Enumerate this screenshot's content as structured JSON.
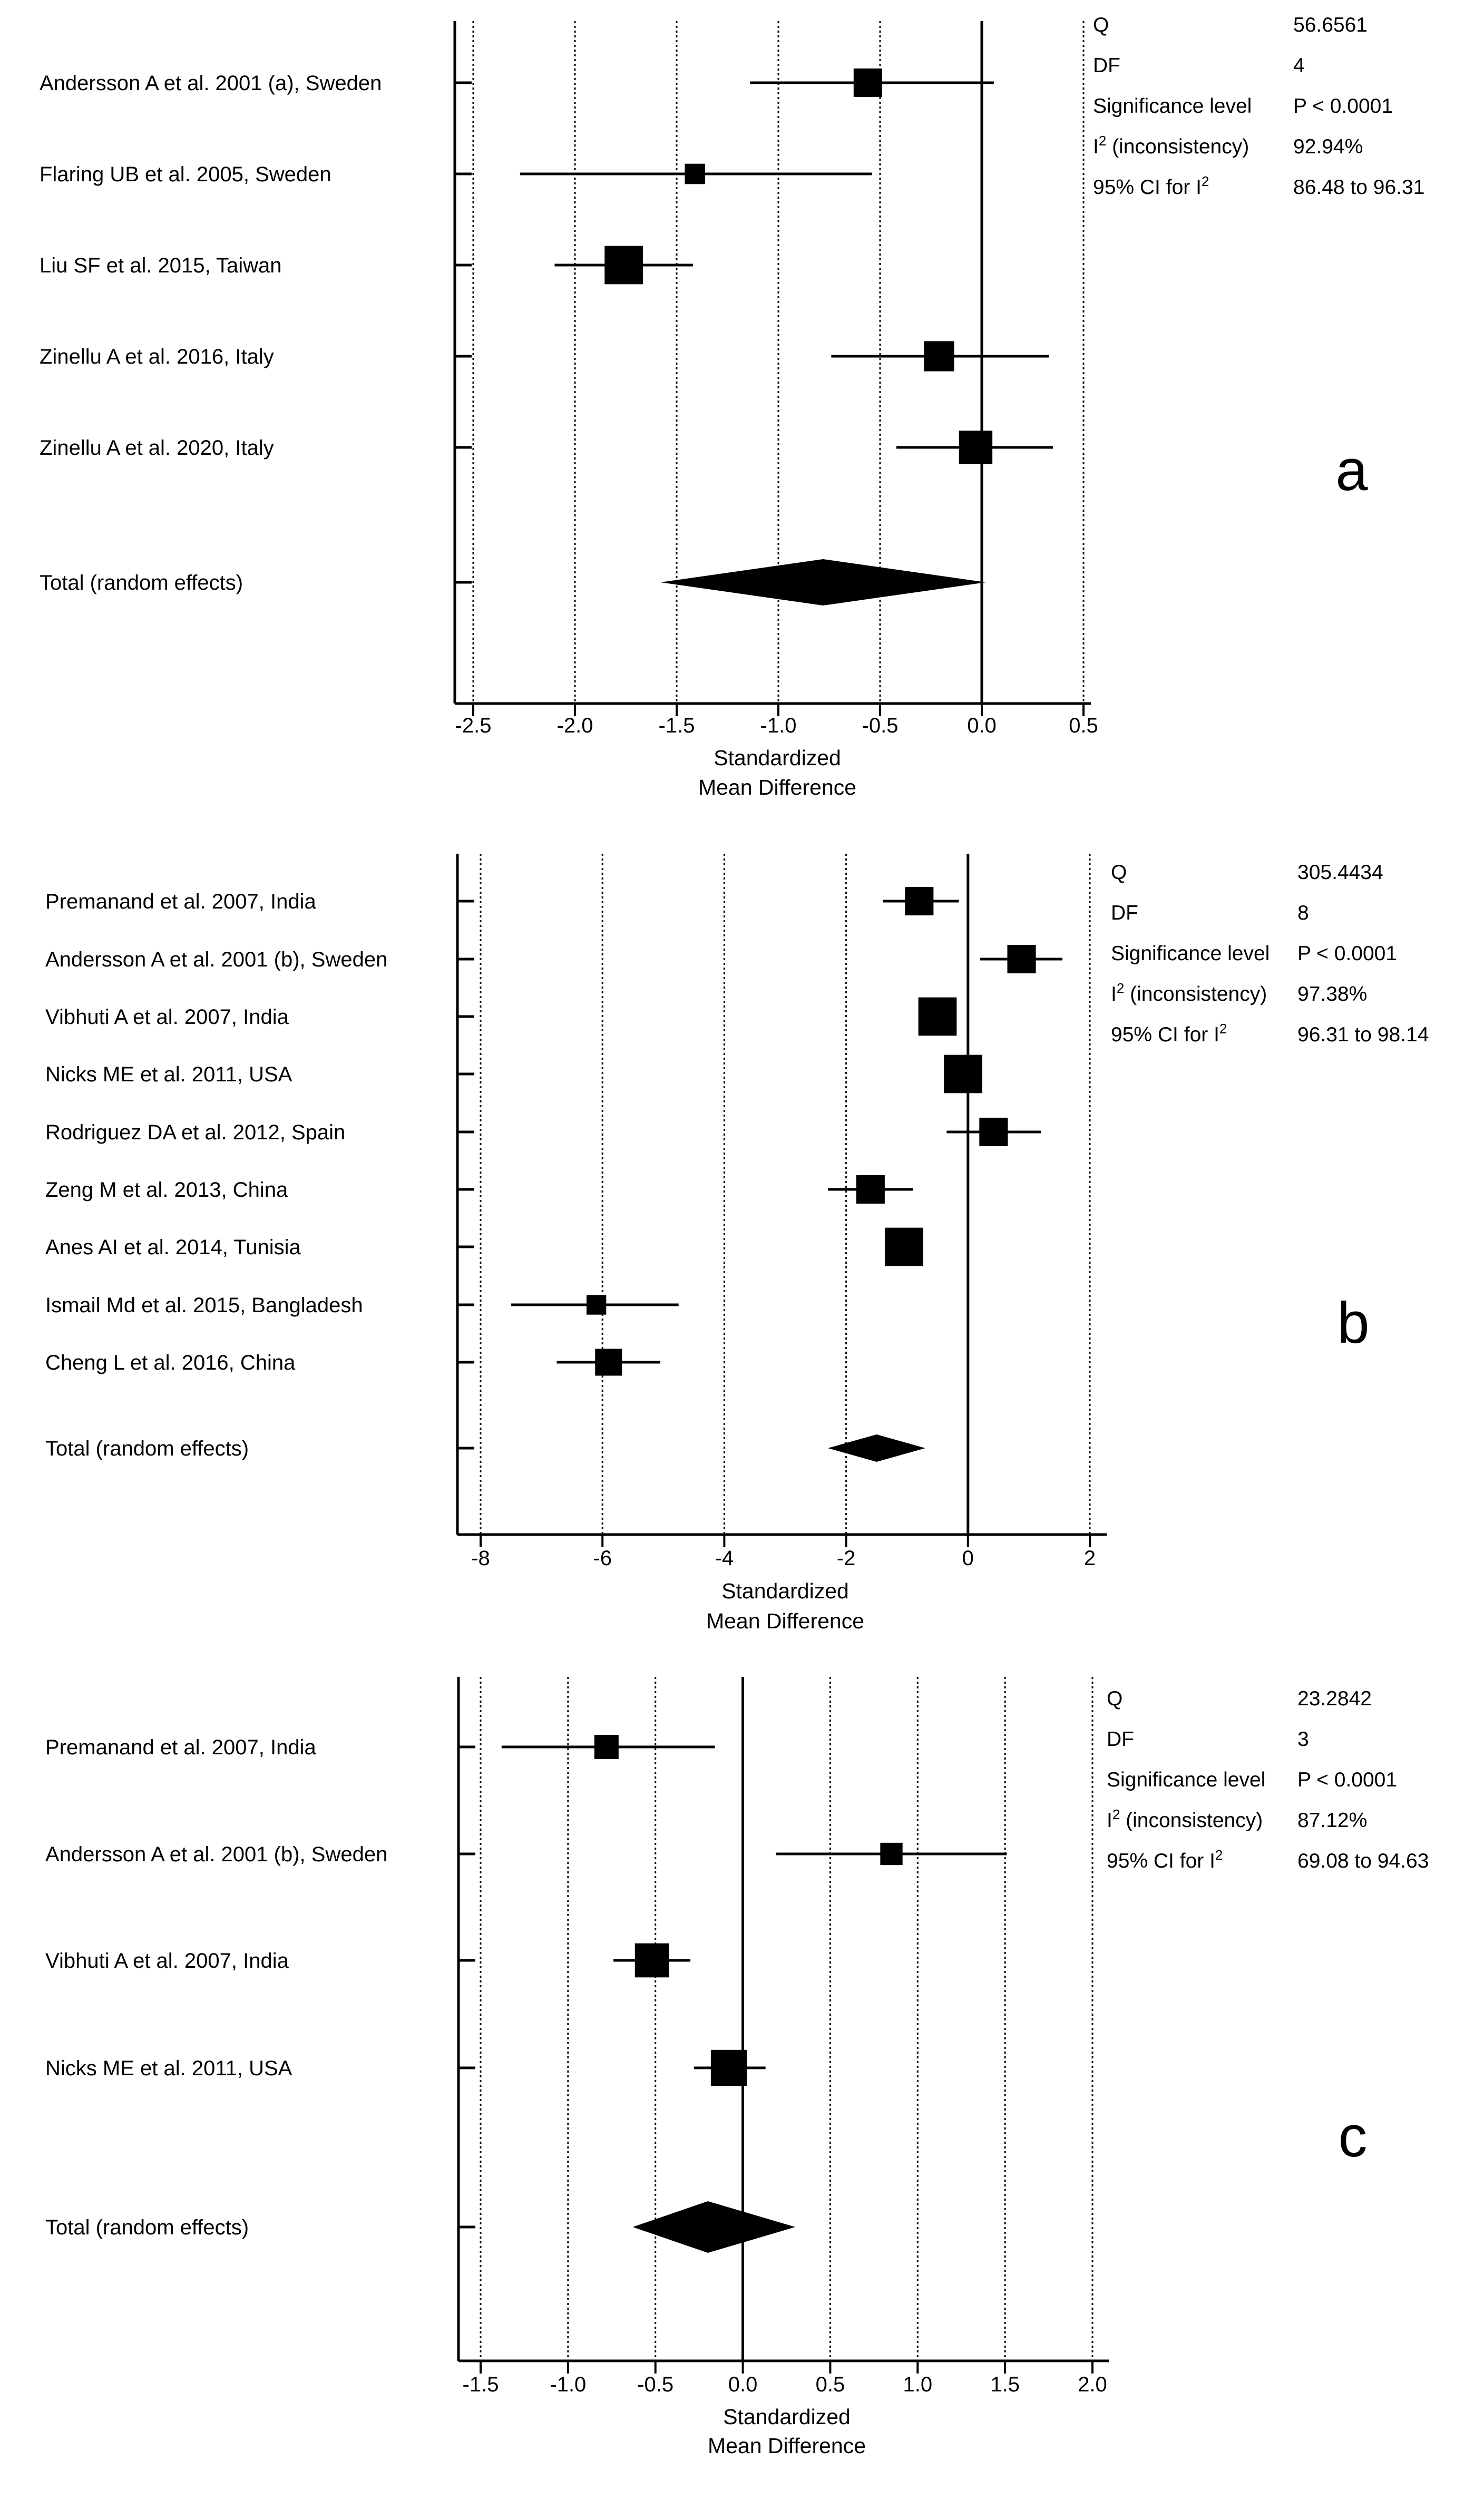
{
  "chart_data": [
    {
      "type": "forest",
      "panel_label": "a",
      "xlabel": "Standardized",
      "xlabel2": "Mean Difference",
      "xlim": [
        -2.55,
        0.55
      ],
      "ticks": [
        -2.5,
        -2.0,
        -1.5,
        -1.0,
        -0.5,
        0.0,
        0.5
      ],
      "tick_labels": [
        "-2.5",
        "-2.0",
        "-1.5",
        "-1.0",
        "-0.5",
        "0.0",
        "0.5"
      ],
      "studies": [
        {
          "label": "Andersson A et al. 2001 (a), Sweden",
          "smd": -0.56,
          "ci": [
            -1.14,
            0.06
          ],
          "weight": 0.55
        },
        {
          "label": "Flaring UB et al. 2005, Sweden",
          "smd": -1.41,
          "ci": [
            -2.27,
            -0.54
          ],
          "weight": 0.3
        },
        {
          "label": "Liu SF et al. 2015, Taiwan",
          "smd": -1.76,
          "ci": [
            -2.1,
            -1.42
          ],
          "weight": 0.85
        },
        {
          "label": "Zinellu A et al. 2016, Italy",
          "smd": -0.21,
          "ci": [
            -0.74,
            0.33
          ],
          "weight": 0.6
        },
        {
          "label": "Zinellu A et al. 2020, Italy",
          "smd": -0.03,
          "ci": [
            -0.42,
            0.35
          ],
          "weight": 0.7
        }
      ],
      "total": {
        "label": "Total (random effects)",
        "smd": -0.78,
        "ci": [
          -1.58,
          0.02
        ]
      },
      "stats": [
        {
          "name": "Q",
          "value": "56.6561"
        },
        {
          "name": "DF",
          "value": "4"
        },
        {
          "name": "Significance level",
          "value": "P < 0.0001"
        },
        {
          "name": "I² (inconsistency)",
          "value": "92.94%"
        },
        {
          "name": "95% CI for I²",
          "value": "86.48 to 96.31"
        }
      ]
    },
    {
      "type": "forest",
      "panel_label": "b",
      "xlabel": "Standardized",
      "xlabel2": "Mean Difference",
      "xlim": [
        -8.35,
        2.3
      ],
      "ticks": [
        -8,
        -6,
        -4,
        -2,
        0,
        2
      ],
      "tick_labels": [
        "-8",
        "-6",
        "-4",
        "-2",
        "0",
        "2"
      ],
      "studies": [
        {
          "label": "Premanand et al. 2007, India",
          "smd": -0.8,
          "ci": [
            -1.4,
            -0.15
          ],
          "weight": 0.55
        },
        {
          "label": "Andersson A et al. 2001 (b), Sweden",
          "smd": 0.88,
          "ci": [
            0.2,
            1.55
          ],
          "weight": 0.55
        },
        {
          "label": "Vibhuti A et al. 2007, India",
          "smd": -0.5,
          "ci": [
            -0.5,
            -0.5
          ],
          "weight": 0.85
        },
        {
          "label": "Nicks ME et al. 2011, USA",
          "smd": -0.08,
          "ci": [
            -0.08,
            -0.08
          ],
          "weight": 0.85
        },
        {
          "label": "Rodriguez DA et al. 2012, Spain",
          "smd": 0.42,
          "ci": [
            -0.35,
            1.2
          ],
          "weight": 0.55
        },
        {
          "label": "Zeng M et al. 2013, China",
          "smd": -1.6,
          "ci": [
            -2.3,
            -0.9
          ],
          "weight": 0.55
        },
        {
          "label": "Anes AI et al. 2014, Tunisia",
          "smd": -1.05,
          "ci": [
            -1.05,
            -1.05
          ],
          "weight": 0.85
        },
        {
          "label": "Ismail Md et al. 2015, Bangladesh",
          "smd": -6.1,
          "ci": [
            -7.5,
            -4.75
          ],
          "weight": 0.28
        },
        {
          "label": "Cheng L et al. 2016, China",
          "smd": -5.9,
          "ci": [
            -6.75,
            -5.05
          ],
          "weight": 0.5
        }
      ],
      "total": {
        "label": "Total (random effects)",
        "smd": -1.5,
        "ci": [
          -2.3,
          -0.7
        ]
      },
      "stats": [
        {
          "name": "Q",
          "value": "305.4434"
        },
        {
          "name": "DF",
          "value": "8"
        },
        {
          "name": "Significance level",
          "value": "P < 0.0001"
        },
        {
          "name": "I² (inconsistency)",
          "value": "97.38%"
        },
        {
          "name": "95% CI for I²",
          "value": "96.31 to 98.14"
        }
      ]
    },
    {
      "type": "forest",
      "panel_label": "c",
      "xlabel": "Standardized",
      "xlabel2": "Mean Difference",
      "xlim": [
        -1.58,
        2.08
      ],
      "ticks": [
        -1.5,
        -1.0,
        -0.5,
        0.0,
        0.5,
        1.0,
        1.5,
        2.0
      ],
      "tick_labels": [
        "-1.5",
        "-1.0",
        "-0.5",
        "0.0",
        "0.5",
        "1.0",
        "1.5",
        "2.0"
      ],
      "studies": [
        {
          "label": "Premanand et al. 2007, India",
          "smd": -0.78,
          "ci": [
            -1.38,
            -0.16
          ],
          "weight": 0.42
        },
        {
          "label": "Andersson A et al. 2001 (b), Sweden",
          "smd": 0.85,
          "ci": [
            0.19,
            1.51
          ],
          "weight": 0.36
        },
        {
          "label": "Vibhuti A et al. 2007, India",
          "smd": -0.52,
          "ci": [
            -0.74,
            -0.3
          ],
          "weight": 0.72
        },
        {
          "label": "Nicks ME et al. 2011, USA",
          "smd": -0.08,
          "ci": [
            -0.28,
            0.13
          ],
          "weight": 0.78
        }
      ],
      "total": {
        "label": "Total (random effects)",
        "smd": -0.2,
        "ci": [
          -0.63,
          0.3
        ]
      },
      "stats": [
        {
          "name": "Q",
          "value": "23.2842"
        },
        {
          "name": "DF",
          "value": "3"
        },
        {
          "name": "Significance level",
          "value": "P < 0.0001"
        },
        {
          "name": "I² (inconsistency)",
          "value": "87.12%"
        },
        {
          "name": "95% CI for I²",
          "value": "69.08 to 94.63"
        }
      ]
    }
  ]
}
